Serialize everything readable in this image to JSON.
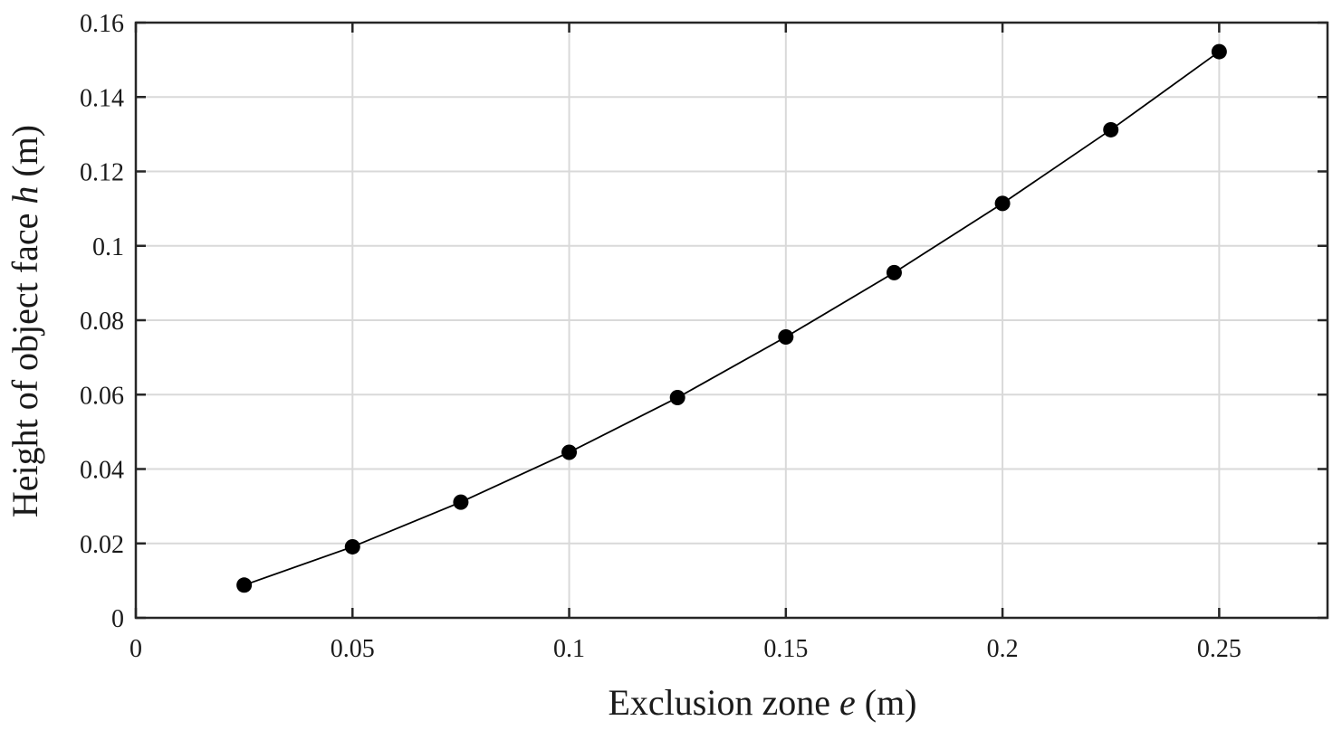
{
  "chart_data": {
    "type": "line",
    "series": [
      {
        "x": [
          0.025,
          0.05,
          0.075,
          0.1,
          0.125,
          0.15,
          0.175,
          0.2,
          0.225,
          0.25
        ],
        "y": [
          0.0088,
          0.0191,
          0.0311,
          0.0445,
          0.0592,
          0.0755,
          0.0928,
          0.1114,
          0.1312,
          0.1522
        ]
      }
    ],
    "xlabel": {
      "prefix": "Exclusion zone ",
      "var": "e",
      "suffix": " (m)"
    },
    "ylabel": {
      "prefix": "Height of object face ",
      "var": "h",
      "suffix": " (m)"
    },
    "xlim": [
      0,
      0.275
    ],
    "ylim": [
      0,
      0.16
    ],
    "xticks": [
      0,
      0.05,
      0.1,
      0.15,
      0.2,
      0.25
    ],
    "xtick_labels": [
      "0",
      "0.05",
      "0.1",
      "0.15",
      "0.2",
      "0.25"
    ],
    "yticks": [
      0,
      0.02,
      0.04,
      0.06,
      0.08,
      0.1,
      0.12,
      0.14,
      0.16
    ],
    "ytick_labels": [
      "0",
      "0.02",
      "0.04",
      "0.06",
      "0.08",
      "0.1",
      "0.12",
      "0.14",
      "0.16"
    ],
    "xgrid": [
      0.05,
      0.1,
      0.15,
      0.2,
      0.25
    ],
    "ygrid": [
      0.02,
      0.04,
      0.06,
      0.08,
      0.1,
      0.12,
      0.14
    ],
    "grid": true,
    "line_color": "#000000",
    "marker": "filled-circle",
    "grid_color": "#d9d9d9"
  }
}
